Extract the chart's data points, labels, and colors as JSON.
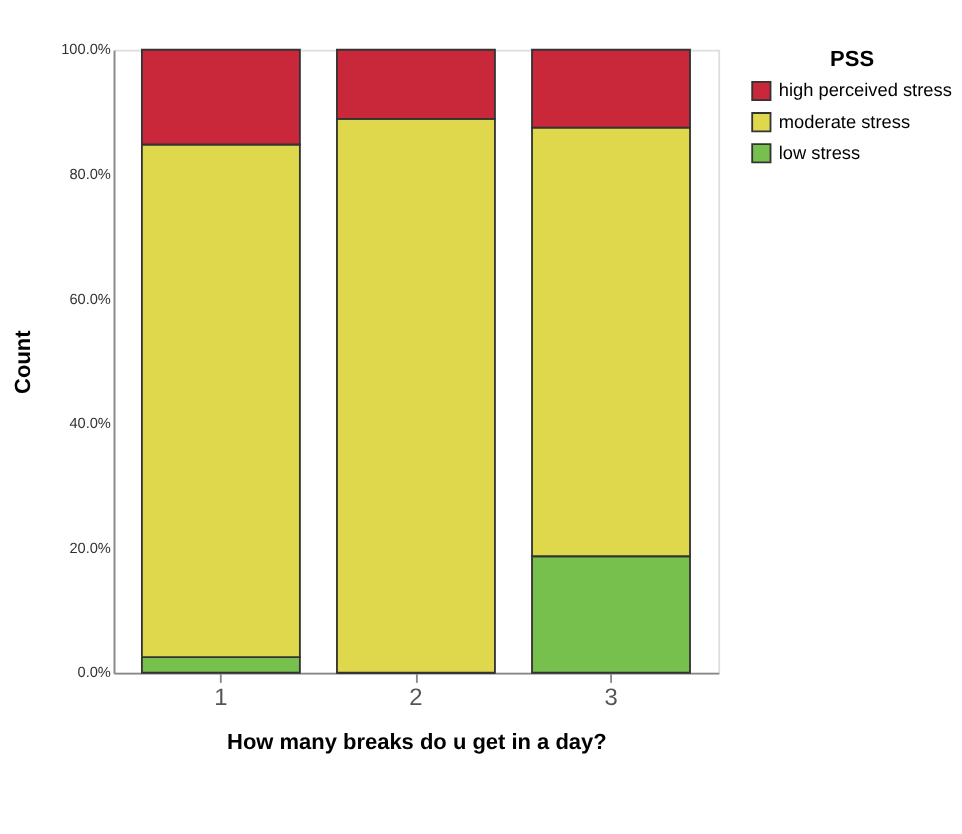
{
  "chart_data": {
    "type": "bar",
    "stacked": true,
    "xlabel": "How many breaks do u get in a day?",
    "ylabel": "Count",
    "legend_title": "PSS",
    "legend": "top right",
    "grid": false,
    "categories": [
      "1",
      "2",
      "3"
    ],
    "ylim": [
      0,
      100
    ],
    "yticks": [
      {
        "value": 0,
        "label": "0.0%"
      },
      {
        "value": 20,
        "label": "20.0%"
      },
      {
        "value": 40,
        "label": "40.0%"
      },
      {
        "value": 60,
        "label": "60.0%"
      },
      {
        "value": 80,
        "label": "80.0%"
      },
      {
        "value": 100,
        "label": "100.0%"
      }
    ],
    "series": [
      {
        "name": "low stress",
        "color": "#78c04e",
        "values": [
          2.5,
          0,
          18.7
        ]
      },
      {
        "name": "moderate stress",
        "color": "#e0d84c",
        "values": [
          82.3,
          88.9,
          68.8
        ]
      },
      {
        "name": "high perceived stress",
        "color": "#c8283a",
        "values": [
          15.2,
          11.1,
          12.5
        ]
      }
    ]
  }
}
